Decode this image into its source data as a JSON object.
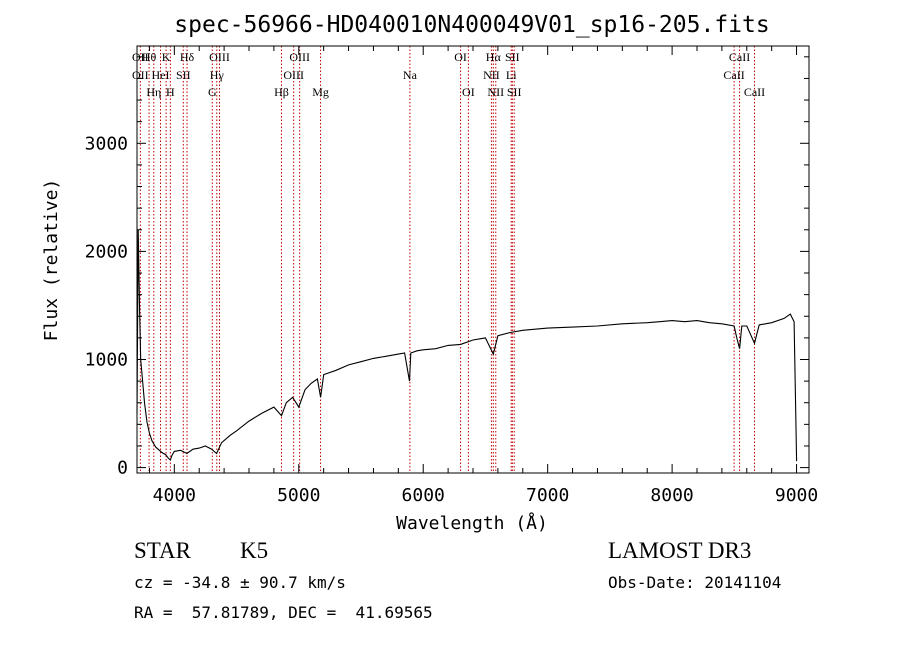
{
  "chart_data": {
    "type": "line",
    "title": "spec-56966-HD040010N400049V01_sp16-205.fits",
    "xlabel": "Wavelength (Å)",
    "ylabel": "Flux (relative)",
    "xlim": [
      3700,
      9100
    ],
    "ylim": [
      -50,
      3900
    ],
    "x_ticks": [
      4000,
      5000,
      6000,
      7000,
      8000,
      9000
    ],
    "x_tick_labels": [
      "4000",
      "5000",
      "6000",
      "7000",
      "8000",
      "9000"
    ],
    "y_ticks": [
      0,
      1000,
      2000,
      3000
    ],
    "y_tick_labels": [
      "0",
      "1000",
      "2000",
      "3000"
    ],
    "series": [
      {
        "name": "spectrum",
        "color": "#000000",
        "x": [
          3700,
          3710,
          3720,
          3730,
          3745,
          3760,
          3780,
          3800,
          3820,
          3850,
          3880,
          3900,
          3930,
          3950,
          3968,
          3980,
          4000,
          4050,
          4101,
          4150,
          4200,
          4250,
          4300,
          4340,
          4380,
          4450,
          4500,
          4600,
          4700,
          4800,
          4861,
          4900,
          4950,
          5000,
          5050,
          5100,
          5150,
          5175,
          5200,
          5300,
          5400,
          5500,
          5600,
          5700,
          5800,
          5850,
          5890,
          5900,
          5950,
          6000,
          6100,
          6200,
          6300,
          6400,
          6500,
          6563,
          6600,
          6700,
          6800,
          6900,
          7000,
          7200,
          7400,
          7600,
          7800,
          7900,
          8000,
          8100,
          8200,
          8300,
          8400,
          8498,
          8520,
          8542,
          8560,
          8600,
          8662,
          8700,
          8800,
          8900,
          8950,
          8980,
          9000
        ],
        "values": [
          500,
          2200,
          1500,
          1000,
          800,
          600,
          420,
          320,
          250,
          190,
          160,
          140,
          120,
          90,
          70,
          110,
          150,
          160,
          130,
          170,
          180,
          200,
          170,
          130,
          230,
          300,
          340,
          430,
          500,
          560,
          480,
          600,
          650,
          560,
          720,
          780,
          820,
          650,
          860,
          900,
          950,
          980,
          1010,
          1030,
          1050,
          1060,
          800,
          1060,
          1080,
          1090,
          1100,
          1130,
          1140,
          1180,
          1200,
          1050,
          1220,
          1250,
          1270,
          1280,
          1290,
          1300,
          1310,
          1330,
          1340,
          1350,
          1360,
          1350,
          1360,
          1340,
          1330,
          1310,
          1200,
          1100,
          1310,
          1310,
          1150,
          1320,
          1340,
          1380,
          1420,
          1350,
          60
        ]
      }
    ],
    "line_markers": [
      {
        "wavelength": 3727,
        "row_labels": [
          "OII",
          "OII",
          ""
        ]
      },
      {
        "wavelength": 3797,
        "row_labels": [
          "Hθ",
          "",
          ""
        ]
      },
      {
        "wavelength": 3835,
        "row_labels": [
          "",
          "",
          "Hη"
        ]
      },
      {
        "wavelength": 3889,
        "row_labels": [
          "",
          "HeI",
          ""
        ]
      },
      {
        "wavelength": 3934,
        "row_labels": [
          "K",
          "",
          ""
        ]
      },
      {
        "wavelength": 3968,
        "row_labels": [
          "",
          "",
          "H"
        ]
      },
      {
        "wavelength": 4072,
        "row_labels": [
          "",
          "SII",
          ""
        ]
      },
      {
        "wavelength": 4102,
        "row_labels": [
          "Hδ",
          "",
          ""
        ]
      },
      {
        "wavelength": 4305,
        "row_labels": [
          "",
          "",
          "G"
        ]
      },
      {
        "wavelength": 4341,
        "row_labels": [
          "",
          "Hγ",
          ""
        ]
      },
      {
        "wavelength": 4363,
        "row_labels": [
          "OIII",
          "",
          ""
        ]
      },
      {
        "wavelength": 4861,
        "row_labels": [
          "",
          "",
          "Hβ"
        ]
      },
      {
        "wavelength": 4959,
        "row_labels": [
          "",
          "OIII",
          ""
        ]
      },
      {
        "wavelength": 5007,
        "row_labels": [
          "OIII",
          "",
          ""
        ]
      },
      {
        "wavelength": 5175,
        "row_labels": [
          "",
          "",
          "Mg"
        ]
      },
      {
        "wavelength": 5893,
        "row_labels": [
          "",
          "Na",
          ""
        ]
      },
      {
        "wavelength": 6300,
        "row_labels": [
          "OI",
          "",
          ""
        ]
      },
      {
        "wavelength": 6363,
        "row_labels": [
          "",
          "",
          "OI"
        ]
      },
      {
        "wavelength": 6548,
        "row_labels": [
          "",
          "NII",
          ""
        ]
      },
      {
        "wavelength": 6563,
        "row_labels": [
          "Hα",
          "",
          ""
        ]
      },
      {
        "wavelength": 6583,
        "row_labels": [
          "",
          "",
          "NII"
        ]
      },
      {
        "wavelength": 6707,
        "row_labels": [
          "",
          "Li",
          ""
        ]
      },
      {
        "wavelength": 6716,
        "row_labels": [
          "SII",
          "",
          ""
        ]
      },
      {
        "wavelength": 6731,
        "row_labels": [
          "",
          "",
          "SII"
        ]
      },
      {
        "wavelength": 8498,
        "row_labels": [
          "",
          "CaII",
          ""
        ]
      },
      {
        "wavelength": 8542,
        "row_labels": [
          "CaII",
          "",
          ""
        ]
      },
      {
        "wavelength": 8662,
        "row_labels": [
          "",
          "",
          "CaII"
        ]
      }
    ],
    "marker_color": "#c00000",
    "grid": false,
    "legend": "none"
  },
  "footer": {
    "object_class": "STAR",
    "subclass": "K5",
    "survey": "LAMOST DR3",
    "cz_text": "cz = -34.8 ± 90.7 km/s",
    "obs_date": "Obs-Date: 20141104",
    "coords_text": "RA =  57.81789, DEC =  41.69565"
  }
}
